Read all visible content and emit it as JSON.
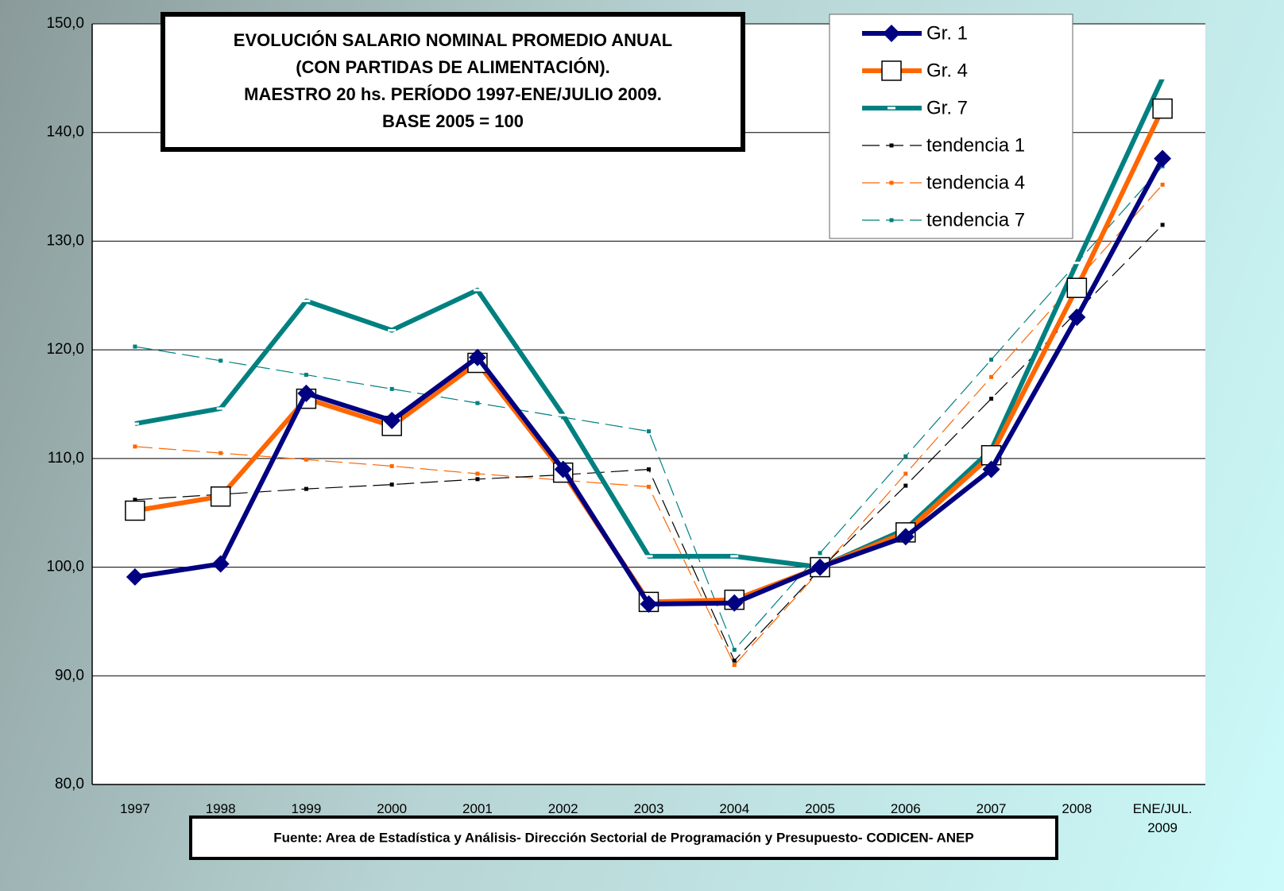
{
  "chart_data": {
    "type": "line",
    "title": [
      "EVOLUCIÓN SALARIO NOMINAL PROMEDIO ANUAL",
      "(CON PARTIDAS DE ALIMENTACIÓN).",
      "MAESTRO 20 hs. PERÍODO 1997-ENE/JULIO 2009.",
      "BASE 2005 = 100"
    ],
    "source": "Fuente: Area de Estadística y Análisis- Dirección Sectorial de Programación y Presupuesto- CODICEN- ANEP",
    "categories": [
      "1997",
      "1998",
      "1999",
      "2000",
      "2001",
      "2002",
      "2003",
      "2004",
      "2005",
      "2006",
      "2007",
      "2008",
      "ENE/JUL. 2009"
    ],
    "series": [
      {
        "name": "Gr. 1",
        "color": "#000080",
        "marker": "diamond",
        "dashed": false,
        "values": [
          99.1,
          100.3,
          116.0,
          113.5,
          119.3,
          109.0,
          96.6,
          96.7,
          100.0,
          102.8,
          109.0,
          123.0,
          137.6
        ]
      },
      {
        "name": "Gr. 4",
        "color": "#ff6600",
        "marker": "square",
        "dashed": false,
        "values": [
          105.2,
          106.5,
          115.5,
          113.0,
          118.8,
          108.7,
          96.8,
          97.0,
          100.0,
          103.2,
          110.3,
          125.7,
          142.2
        ]
      },
      {
        "name": "Gr. 7",
        "color": "#008080",
        "marker": "none",
        "dashed": false,
        "values": [
          113.2,
          114.6,
          124.5,
          121.8,
          125.5,
          114.0,
          101.0,
          101.0,
          100.0,
          103.5,
          110.8,
          128.0,
          145.0
        ]
      },
      {
        "name": "tendencia 1",
        "color": "#000000",
        "marker": "dot",
        "dashed": true,
        "values": [
          106.2,
          106.7,
          107.2,
          107.6,
          108.1,
          108.5,
          109.0,
          91.4,
          99.8,
          107.5,
          115.5,
          123.5,
          131.5
        ]
      },
      {
        "name": "tendencia 4",
        "color": "#ff6600",
        "marker": "dot",
        "dashed": true,
        "values": [
          111.1,
          110.5,
          109.9,
          109.3,
          108.6,
          108.0,
          107.4,
          91.0,
          99.7,
          108.6,
          117.5,
          126.4,
          135.2
        ]
      },
      {
        "name": "tendencia 7",
        "color": "#008080",
        "marker": "dot",
        "dashed": true,
        "values": [
          120.3,
          119.0,
          117.7,
          116.4,
          115.1,
          113.8,
          112.5,
          92.4,
          101.3,
          110.2,
          119.1,
          128.0,
          136.9
        ]
      }
    ],
    "ylim": [
      80,
      150
    ],
    "yticks": [
      {
        "value": 80,
        "label": "80,0"
      },
      {
        "value": 90,
        "label": "90,0"
      },
      {
        "value": 100,
        "label": "100,0"
      },
      {
        "value": 110,
        "label": "110,0"
      },
      {
        "value": 120,
        "label": "120,0"
      },
      {
        "value": 130,
        "label": "130,0"
      },
      {
        "value": 140,
        "label": "140,0"
      },
      {
        "value": 150,
        "label": "150,0"
      }
    ],
    "grid": true
  }
}
